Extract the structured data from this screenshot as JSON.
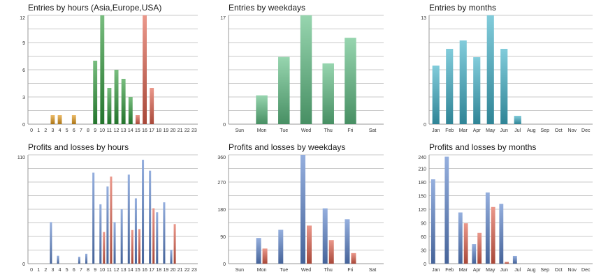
{
  "chart_data": [
    {
      "id": "entries-hours",
      "type": "bar",
      "title": "Entries by hours (Asia,Europe,USA)",
      "categories": [
        "0",
        "1",
        "2",
        "3",
        "4",
        "5",
        "6",
        "7",
        "8",
        "9",
        "10",
        "11",
        "12",
        "13",
        "14",
        "15",
        "16",
        "17",
        "18",
        "19",
        "20",
        "21",
        "22",
        "23"
      ],
      "y_ticks": [
        "0",
        "3",
        "6",
        "9",
        "12"
      ],
      "ylim": [
        0,
        12
      ],
      "colors": [
        "#e39a1c",
        "#2f9a3a",
        "#e0604c"
      ],
      "series": [
        {
          "name": "Asia",
          "values": [
            0,
            0,
            0,
            1,
            1,
            0,
            1,
            0,
            0,
            0,
            0,
            0,
            0,
            0,
            0,
            0,
            0,
            0,
            0,
            0,
            0,
            0,
            0,
            0
          ]
        },
        {
          "name": "Europe",
          "values": [
            0,
            0,
            0,
            0,
            0,
            0,
            0,
            0,
            0,
            7,
            12,
            4,
            6,
            5,
            3,
            0,
            0,
            0,
            0,
            0,
            0,
            0,
            0,
            0
          ]
        },
        {
          "name": "USA",
          "values": [
            0,
            0,
            0,
            0,
            0,
            0,
            0,
            0,
            0,
            0,
            0,
            0,
            0,
            0,
            0,
            1,
            12,
            4,
            0,
            0,
            0,
            0,
            0,
            0
          ]
        }
      ]
    },
    {
      "id": "entries-weekdays",
      "type": "bar",
      "title": "Entries by weekdays",
      "categories": [
        "Sun",
        "Mon",
        "Tue",
        "Wed",
        "Thu",
        "Fri",
        "Sat"
      ],
      "y_ticks": [
        "0",
        "17"
      ],
      "ylim": [
        0,
        17
      ],
      "colors": [
        "#5fbf84"
      ],
      "series": [
        {
          "name": "Entries",
          "values": [
            0,
            4.5,
            10.5,
            17,
            9.5,
            13.5,
            0
          ]
        }
      ]
    },
    {
      "id": "entries-months",
      "type": "bar",
      "title": "Entries by months",
      "categories": [
        "Jan",
        "Feb",
        "Mar",
        "Apr",
        "May",
        "Jun",
        "Jul",
        "Aug",
        "Sep",
        "Oct",
        "Nov",
        "Dec"
      ],
      "y_ticks": [
        "0",
        "13"
      ],
      "ylim": [
        0,
        13
      ],
      "colors": [
        "#3fb0c8"
      ],
      "series": [
        {
          "name": "Entries",
          "values": [
            7,
            9,
            10,
            8,
            13,
            9,
            1,
            0,
            0,
            0,
            0,
            0
          ]
        }
      ]
    },
    {
      "id": "profits-hours",
      "type": "bar",
      "title": "Profits and losses by hours",
      "categories": [
        "0",
        "1",
        "2",
        "3",
        "4",
        "5",
        "6",
        "7",
        "8",
        "9",
        "10",
        "11",
        "12",
        "13",
        "14",
        "15",
        "16",
        "17",
        "18",
        "19",
        "20",
        "21",
        "22",
        "23"
      ],
      "y_ticks": [
        "0",
        "110"
      ],
      "ylim": [
        0,
        110
      ],
      "colors": [
        "#5c84cc",
        "#e0604c"
      ],
      "series": [
        {
          "name": "Profits",
          "values": [
            0,
            0,
            0,
            42,
            8,
            0,
            0,
            7,
            10,
            92,
            60,
            78,
            42,
            55,
            90,
            66,
            105,
            94,
            52,
            62,
            14,
            0,
            0,
            0
          ]
        },
        {
          "name": "Losses",
          "values": [
            0,
            0,
            0,
            0,
            0,
            0,
            0,
            0,
            0,
            0,
            32,
            88,
            0,
            0,
            34,
            35,
            0,
            56,
            0,
            0,
            40,
            0,
            0,
            0
          ]
        }
      ]
    },
    {
      "id": "profits-weekdays",
      "type": "bar",
      "title": "Profits and losses by weekdays",
      "categories": [
        "Sun",
        "Mon",
        "Tue",
        "Wed",
        "Thu",
        "Fri",
        "Sat"
      ],
      "y_ticks": [
        "0",
        "90",
        "180",
        "270",
        "360"
      ],
      "ylim": [
        0,
        360
      ],
      "colors": [
        "#5c84cc",
        "#e0604c"
      ],
      "series": [
        {
          "name": "Profits",
          "values": [
            0,
            85,
            112,
            360,
            183,
            147,
            0
          ]
        },
        {
          "name": "Losses",
          "values": [
            0,
            50,
            0,
            126,
            78,
            35,
            0
          ]
        }
      ]
    },
    {
      "id": "profits-months",
      "type": "bar",
      "title": "Profits and losses by months",
      "categories": [
        "Jan",
        "Feb",
        "Mar",
        "Apr",
        "May",
        "Jun",
        "Jul",
        "Aug",
        "Sep",
        "Oct",
        "Nov",
        "Dec"
      ],
      "y_ticks": [
        "0",
        "30",
        "60",
        "90",
        "120",
        "150",
        "180",
        "210",
        "240"
      ],
      "ylim": [
        0,
        240
      ],
      "colors": [
        "#5c84cc",
        "#e0604c"
      ],
      "series": [
        {
          "name": "Profits",
          "values": [
            186,
            236,
            113,
            43,
            157,
            132,
            17,
            0,
            0,
            0,
            0,
            0
          ]
        },
        {
          "name": "Losses",
          "values": [
            0,
            0,
            89,
            68,
            125,
            4,
            0,
            0,
            0,
            0,
            0,
            0
          ]
        }
      ]
    }
  ]
}
